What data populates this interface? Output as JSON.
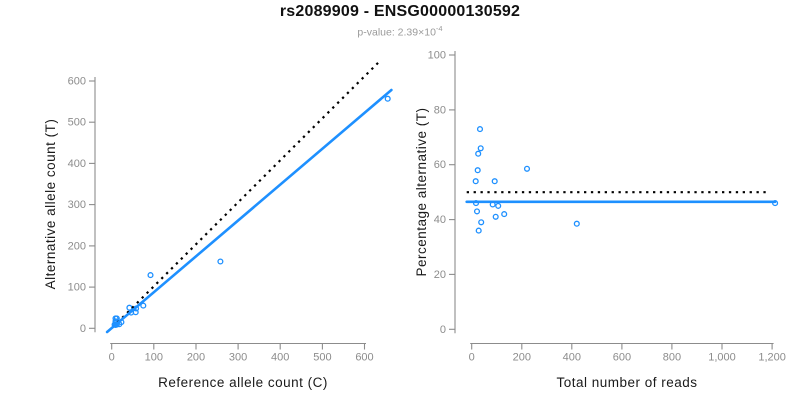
{
  "title": "rs2089909 - ENSG00000130592",
  "subtitle": {
    "text": "p-value: 2.39×10",
    "exponent": "-4"
  },
  "colors": {
    "accent_blue": "#1E90FF",
    "dotted_black": "#000000",
    "axis_gray": "#8C8C8C",
    "tick_label_gray": "#8C8C8C",
    "subtitle_gray": "#9B9B9B",
    "title_black": "#111111"
  },
  "chart_data": [
    {
      "name": "allele-counts-scatter",
      "type": "scatter",
      "xlabel": "Reference allele count (C)",
      "ylabel": "Alternative allele count (T)",
      "xlim": [
        0,
        660
      ],
      "ylim": [
        0,
        660
      ],
      "grid": false,
      "xticks": [
        {
          "v": 0,
          "label": "0"
        },
        {
          "v": 100,
          "label": "100"
        },
        {
          "v": 200,
          "label": "200"
        },
        {
          "v": 300,
          "label": "300"
        },
        {
          "v": 400,
          "label": "400"
        },
        {
          "v": 500,
          "label": "500"
        },
        {
          "v": 600,
          "label": "600"
        }
      ],
      "yticks": [
        {
          "v": 0,
          "label": "0"
        },
        {
          "v": 100,
          "label": "100"
        },
        {
          "v": 200,
          "label": "200"
        },
        {
          "v": 300,
          "label": "300"
        },
        {
          "v": 400,
          "label": "400"
        },
        {
          "v": 500,
          "label": "500"
        },
        {
          "v": 600,
          "label": "600"
        }
      ],
      "points": [
        [
          9,
          24
        ],
        [
          12,
          24
        ],
        [
          9,
          17
        ],
        [
          10,
          14
        ],
        [
          92,
          129
        ],
        [
          7,
          9
        ],
        [
          42,
          50
        ],
        [
          9,
          8
        ],
        [
          46,
          38
        ],
        [
          58,
          48
        ],
        [
          12,
          9
        ],
        [
          57,
          39
        ],
        [
          75,
          55
        ],
        [
          23,
          15
        ],
        [
          18,
          10
        ],
        [
          258,
          162
        ],
        [
          655,
          557
        ]
      ],
      "lines": [
        {
          "name": "expected-50pct-line",
          "style": "dotted",
          "color": "#000000",
          "from": [
            2,
            2
          ],
          "to": [
            638,
            650
          ]
        },
        {
          "name": "regression-line",
          "style": "solid",
          "color": "#1E90FF",
          "from": [
            -11,
            -9
          ],
          "to": [
            664,
            578
          ]
        }
      ]
    },
    {
      "name": "percentage-vs-reads-scatter",
      "type": "scatter",
      "xlabel": "Total number of reads",
      "ylabel": "Percentage alternative (T)",
      "xlim": [
        0,
        1260
      ],
      "ylim": [
        0,
        100
      ],
      "grid": false,
      "xticks": [
        {
          "v": 0,
          "label": "0"
        },
        {
          "v": 200,
          "label": "200"
        },
        {
          "v": 400,
          "label": "400"
        },
        {
          "v": 600,
          "label": "600"
        },
        {
          "v": 800,
          "label": "800"
        },
        {
          "v": 1000,
          "label": "1,000"
        },
        {
          "v": 1200,
          "label": "1,200"
        }
      ],
      "yticks": [
        {
          "v": 0,
          "label": "0"
        },
        {
          "v": 20,
          "label": "20"
        },
        {
          "v": 40,
          "label": "40"
        },
        {
          "v": 60,
          "label": "60"
        },
        {
          "v": 80,
          "label": "80"
        },
        {
          "v": 100,
          "label": "100"
        }
      ],
      "points": [
        [
          33,
          73
        ],
        [
          36,
          66
        ],
        [
          26,
          64
        ],
        [
          24,
          58
        ],
        [
          221,
          58.5
        ],
        [
          16,
          54
        ],
        [
          92,
          54
        ],
        [
          17,
          46
        ],
        [
          84,
          45.5
        ],
        [
          106,
          45
        ],
        [
          21,
          43
        ],
        [
          96,
          41
        ],
        [
          130,
          42
        ],
        [
          38,
          39
        ],
        [
          28,
          36
        ],
        [
          420,
          38.5
        ],
        [
          1212,
          46
        ]
      ],
      "lines": [
        {
          "name": "expected-50pct-line",
          "style": "dotted",
          "color": "#000000",
          "from": [
            -20,
            50
          ],
          "to": [
            1190,
            50
          ]
        },
        {
          "name": "mean-percentage-line",
          "style": "solid",
          "color": "#1E90FF",
          "from": [
            -20,
            46.5
          ],
          "to": [
            1212,
            46.5
          ]
        }
      ]
    }
  ]
}
